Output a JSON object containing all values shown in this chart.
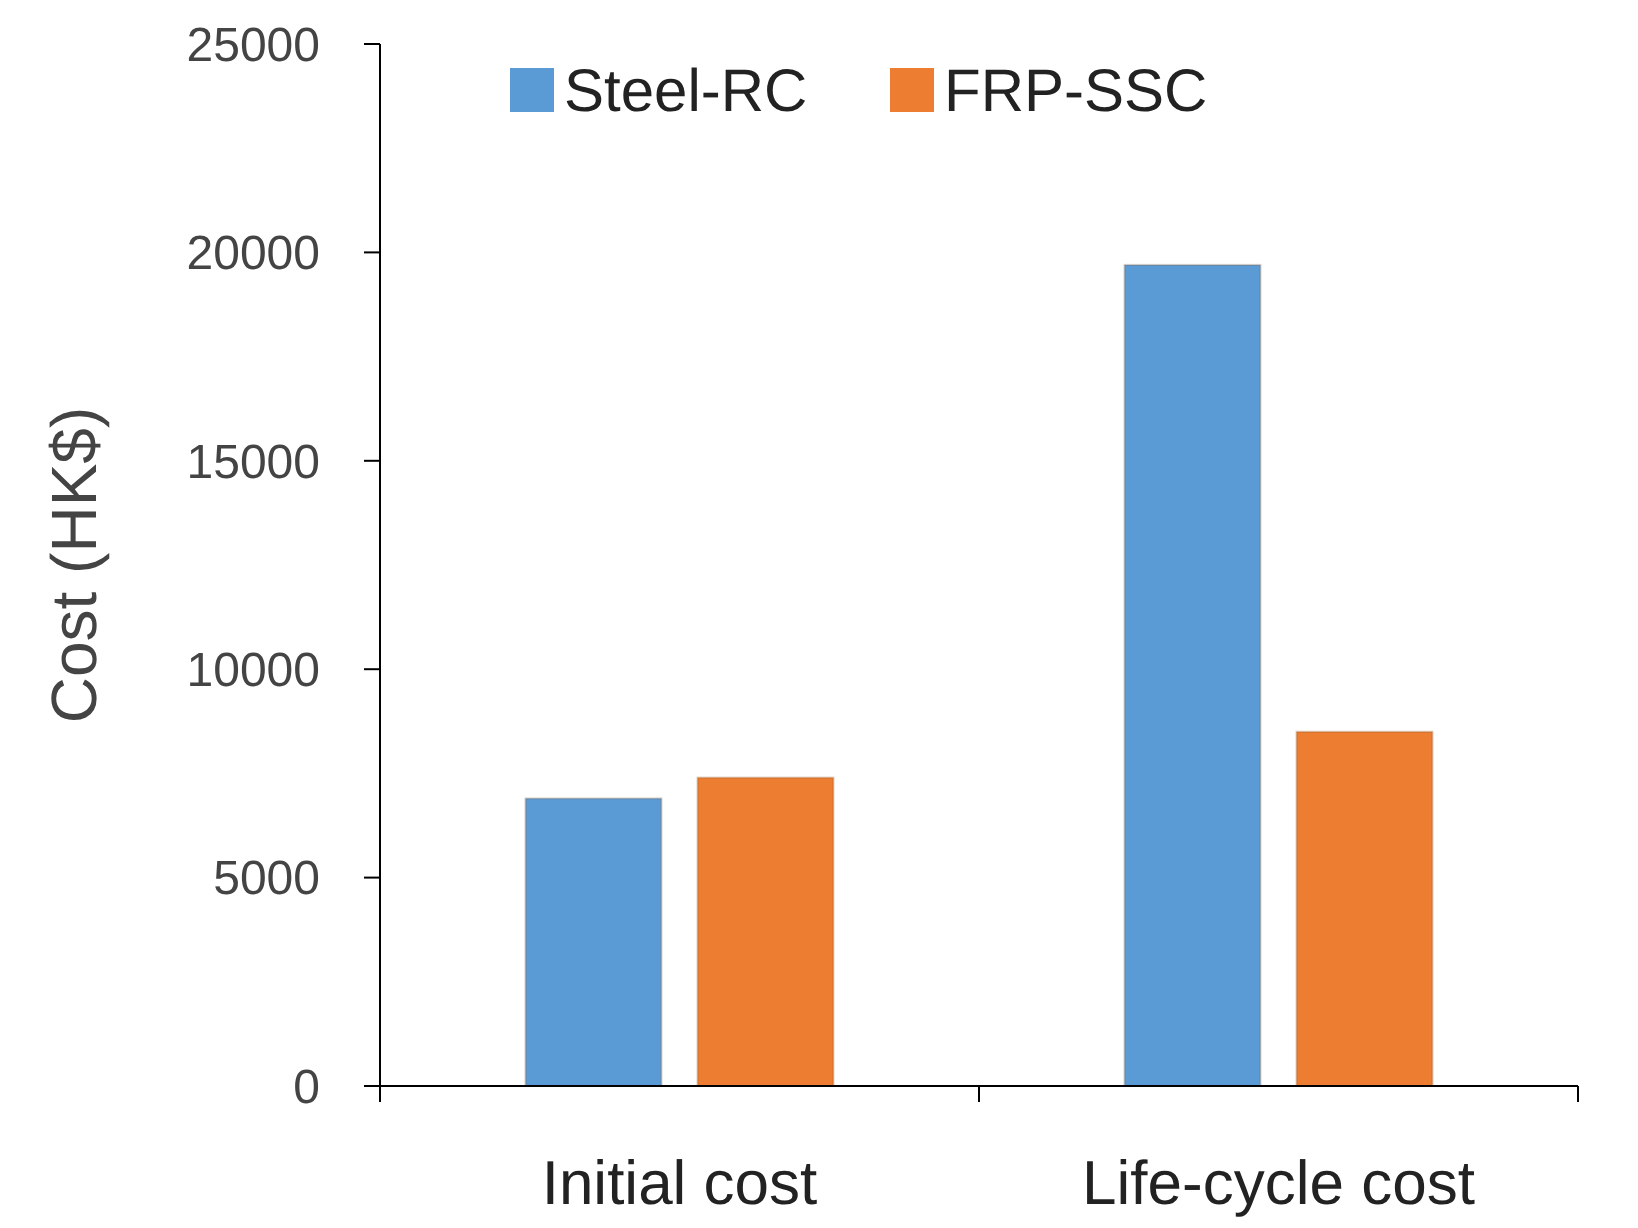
{
  "chart_data": {
    "type": "bar",
    "categories": [
      "Initial cost",
      "Life-cycle cost"
    ],
    "series": [
      {
        "name": "Steel-RC",
        "color": "#5b9bd5",
        "values": [
          6900,
          19700
        ]
      },
      {
        "name": "FRP-SSC",
        "color": "#ed7d31",
        "values": [
          7400,
          8500
        ]
      }
    ],
    "ylabel": "Cost (HK$)",
    "ylim": [
      0,
      25000
    ],
    "yticks": [
      0,
      5000,
      10000,
      15000,
      20000,
      25000
    ],
    "grid": false,
    "legend": "top"
  }
}
